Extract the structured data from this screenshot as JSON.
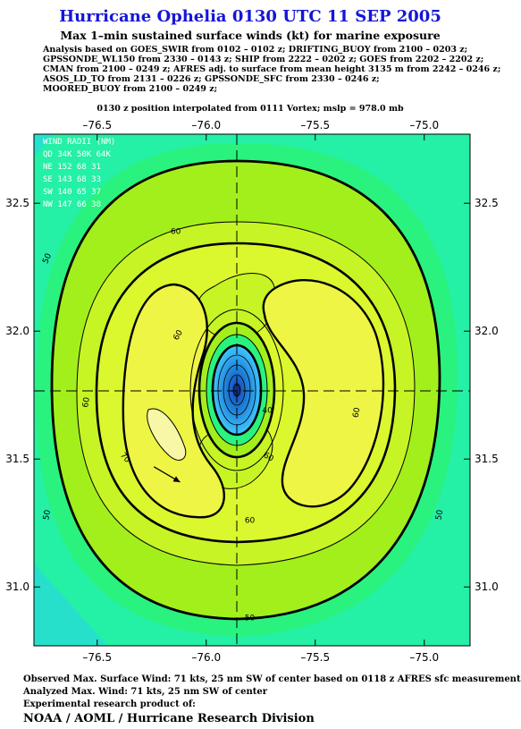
{
  "title": "Hurricane Ophelia 0130 UTC 11 SEP 2005",
  "subtitle": "Max 1–min sustained surface winds (kt) for marine exposure",
  "analysis_lines": [
    "Analysis based on  GOES_SWIR from 0102 – 0102 z;  DRIFTING_BUOY from 2100 – 0203 z;",
    "GPSSONDE_WL150 from 2330 – 0143 z;  SHIP from 2222 – 0202 z;  GOES from 2202 – 2202 z;",
    "CMAN from 2100 – 0249 z;  AFRES adj. to surface from mean height 3135 m from 2242 – 0246 z;",
    "ASOS_LD_TO from 2131 – 0226 z;  GPSSONDE_SFC from 2330 – 0246 z;",
    "MOORED_BUOY from 2100 – 0249 z;"
  ],
  "position_line": "0130 z position interpolated from 0111 Vortex; mslp = 978.0 mb",
  "footer": {
    "line1": "Observed Max. Surface Wind: 71 kts, 25 nm SW of center based on 0118 z AFRES sfc measurement",
    "line2": "Analyzed Max. Wind: 71 kts, 25 nm SW of center",
    "line3": "Experimental research product of:",
    "credit": "NOAA / AOML / Hurricane Research Division"
  },
  "wind_radii": {
    "title": "WIND RADII (NM)",
    "header": "QD 34K 50K 64K",
    "rows": [
      "NE 152  68  31",
      "SE 143  68  33",
      "SW 140  65  37",
      "NW 147  66  38"
    ]
  },
  "colors": {
    "title": "#1515d8",
    "lt35": "#27e0cc",
    "k35": "#24f0a6",
    "k40": "#2af27e",
    "k50": "#a2ef1c",
    "k60": "#c6f425",
    "k64": "#dbf72d",
    "k70": "#eef544",
    "core_light": "#40c8ff",
    "core_dark": "#1a3fb8"
  },
  "chart_data": {
    "type": "contour",
    "variable": "Max 1-min sustained surface wind (kt)",
    "x_ticks": [
      -76.5,
      -76.0,
      -75.5,
      -75.0
    ],
    "y_ticks": [
      31.0,
      31.5,
      32.0,
      32.5
    ],
    "x_tick_labels": [
      "–76.5",
      "–76.0",
      "–75.5",
      "–75.0"
    ],
    "y_tick_labels": [
      "31.0",
      "31.5",
      "32.0",
      "32.5"
    ],
    "xlim": [
      -76.79,
      -74.79
    ],
    "ylim": [
      30.77,
      32.77
    ],
    "center": {
      "lon": -75.79,
      "lat": 31.77
    },
    "contour_labels": [
      {
        "text": "50",
        "lon": -76.72,
        "lat": 32.28,
        "angle": -65
      },
      {
        "text": "60",
        "lon": -76.14,
        "lat": 32.38,
        "angle": 0
      },
      {
        "text": "60",
        "lon": -76.12,
        "lat": 31.98,
        "angle": -60
      },
      {
        "text": "60",
        "lon": -76.54,
        "lat": 31.72,
        "angle": -80
      },
      {
        "text": "60",
        "lon": -75.3,
        "lat": 31.68,
        "angle": -80
      },
      {
        "text": "60",
        "lon": -75.8,
        "lat": 31.25,
        "angle": 0
      },
      {
        "text": "60",
        "lon": -75.72,
        "lat": 31.5,
        "angle": 30
      },
      {
        "text": "50",
        "lon": -76.72,
        "lat": 31.28,
        "angle": -80
      },
      {
        "text": "50",
        "lon": -74.92,
        "lat": 31.28,
        "angle": -80
      },
      {
        "text": "50",
        "lon": -75.8,
        "lat": 30.87,
        "angle": 0
      },
      {
        "text": "70",
        "lon": -76.38,
        "lat": 31.5,
        "angle": 50
      },
      {
        "text": "40",
        "lon": -75.72,
        "lat": 31.68,
        "angle": 0
      }
    ],
    "arrow": {
      "from": {
        "lon": -76.24,
        "lat": 31.47
      },
      "to": {
        "lon": -76.12,
        "lat": 31.41
      }
    }
  }
}
